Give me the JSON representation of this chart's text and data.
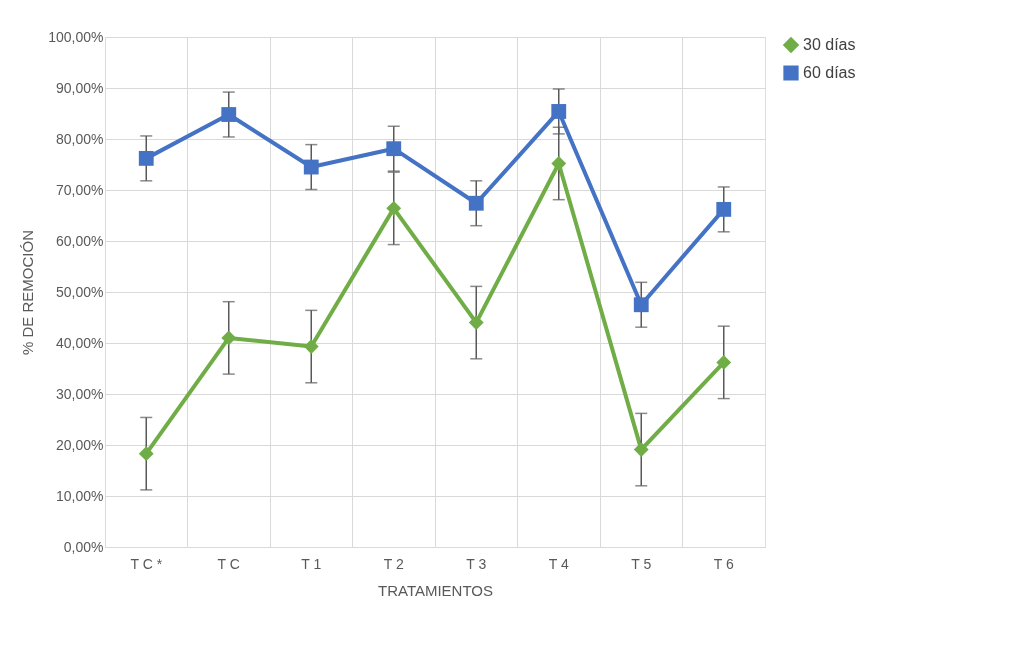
{
  "chart_data": {
    "type": "line",
    "xlabel": "TRATAMIENTOS",
    "ylabel": "% DE REMOCIÓN",
    "categories": [
      "T C  *",
      "T C",
      "T 1",
      "T 2",
      "T 3",
      "T 4",
      "T 5",
      "T 6"
    ],
    "series": [
      {
        "name": "30 días",
        "color": "#70ad47",
        "marker": "diamond",
        "values": [
          18.3,
          41.0,
          39.3,
          66.4,
          44.0,
          75.2,
          19.1,
          36.2
        ],
        "errors": [
          7.1,
          7.1,
          7.1,
          7.1,
          7.1,
          7.1,
          7.1,
          7.1
        ]
      },
      {
        "name": "60 días",
        "color": "#4472c4",
        "marker": "square",
        "values": [
          76.2,
          84.8,
          74.5,
          78.1,
          67.4,
          85.4,
          47.5,
          66.2
        ],
        "errors": [
          4.4,
          4.4,
          4.4,
          4.4,
          4.4,
          4.4,
          4.4,
          4.4
        ]
      }
    ],
    "ylim": [
      0,
      100
    ],
    "yticks": [
      {
        "value": 0,
        "label": "0,00%"
      },
      {
        "value": 10,
        "label": "10,00%"
      },
      {
        "value": 20,
        "label": "20,00%"
      },
      {
        "value": 30,
        "label": "30,00%"
      },
      {
        "value": 40,
        "label": "40,00%"
      },
      {
        "value": 50,
        "label": "50,00%"
      },
      {
        "value": 60,
        "label": "60,00%"
      },
      {
        "value": 70,
        "label": "70,00%"
      },
      {
        "value": 80,
        "label": "80,00%"
      },
      {
        "value": 90,
        "label": "90,00%"
      },
      {
        "value": 100,
        "label": "100,00%"
      }
    ],
    "grid": true,
    "legend": "right",
    "line_style": "solid"
  }
}
